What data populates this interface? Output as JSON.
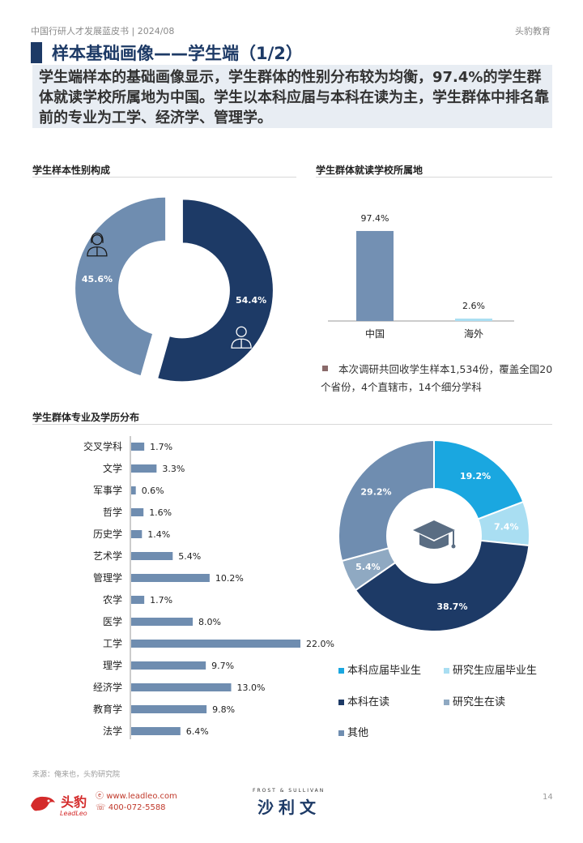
{
  "header": {
    "left": "中国行研人才发展蓝皮书 | 2024/08",
    "right": "头豹教育"
  },
  "title": "样本基础画像——学生端（1/2）",
  "summary": "学生端样本的基础画像显示，学生群体的性别分布较为均衡，97.4%的学生群体就读学校所属地为中国。学生以本科应届与本科在读为主，学生群体中排名靠前的专业为工学、经济学、管理学。",
  "sections": {
    "gender": "学生样本性别构成",
    "location": "学生群体就读学校所属地",
    "major": "学生群体专业及学历分布"
  },
  "note": "本次调研共回收学生样本1,534份，覆盖全国20个省份，4个直辖市，14个细分学科",
  "colors": {
    "navy": "#1d3a66",
    "steel": "#6f8db0",
    "cyan": "#1aa7e0",
    "lightcyan": "#a9def2",
    "grayblue": "#8fa9c2",
    "loc_china": "#7390b3",
    "loc_abroad": "#a9def2",
    "bars": "#6f8db0"
  },
  "chart_data": [
    {
      "type": "pie",
      "title": "学生样本性别构成",
      "slices": [
        {
          "label": "男",
          "value": 54.4,
          "display": "54.4%",
          "icon": "male-user-icon",
          "color": "#1d3a66"
        },
        {
          "label": "女",
          "value": 45.6,
          "display": "45.6%",
          "icon": "female-user-icon",
          "color": "#6f8db0"
        }
      ]
    },
    {
      "type": "bar",
      "title": "学生群体就读学校所属地",
      "categories": [
        "中国",
        "海外"
      ],
      "values": [
        97.4,
        2.6
      ],
      "labels": [
        "97.4%",
        "2.6%"
      ],
      "ylim": [
        0,
        100
      ]
    },
    {
      "type": "bar",
      "orientation": "horizontal",
      "title": "学生群体专业及学历分布",
      "categories": [
        "交叉学科",
        "文学",
        "军事学",
        "哲学",
        "历史学",
        "艺术学",
        "管理学",
        "农学",
        "医学",
        "工学",
        "理学",
        "经济学",
        "教育学",
        "法学"
      ],
      "values": [
        1.7,
        3.3,
        0.6,
        1.6,
        1.4,
        5.4,
        10.2,
        1.7,
        8.0,
        22.0,
        9.7,
        13.0,
        9.8,
        6.4
      ],
      "labels": [
        "1.7%",
        "3.3%",
        "0.6%",
        "1.6%",
        "1.4%",
        "5.4%",
        "10.2%",
        "1.7%",
        "8.0%",
        "22.0%",
        "9.7%",
        "13.0%",
        "9.8%",
        "6.4%"
      ]
    },
    {
      "type": "pie",
      "center_icon": "graduation-cap-icon",
      "slices": [
        {
          "label": "本科应届毕业生",
          "value": 19.2,
          "display": "19.2%",
          "color": "#1aa7e0"
        },
        {
          "label": "研究生应届毕业生",
          "value": 7.4,
          "display": "7.4%",
          "color": "#a9def2"
        },
        {
          "label": "本科在读",
          "value": 38.7,
          "display": "38.7%",
          "color": "#1d3a66"
        },
        {
          "label": "研究生在读",
          "value": 5.4,
          "display": "5.4%",
          "color": "#8fa9c2"
        },
        {
          "label": "其他",
          "value": 29.2,
          "display": "29.2%",
          "color": "#6f8db0"
        }
      ]
    }
  ],
  "footer": {
    "source": "来源：俺来也，头豹研究院",
    "page": "14",
    "logo_cn": "头豹",
    "logo_en": "LeadLeo",
    "website": "www.leadleo.com",
    "phone": "400-072-5588",
    "partner_en": "FROST & SULLIVAN",
    "partner_cn": "沙利文"
  }
}
